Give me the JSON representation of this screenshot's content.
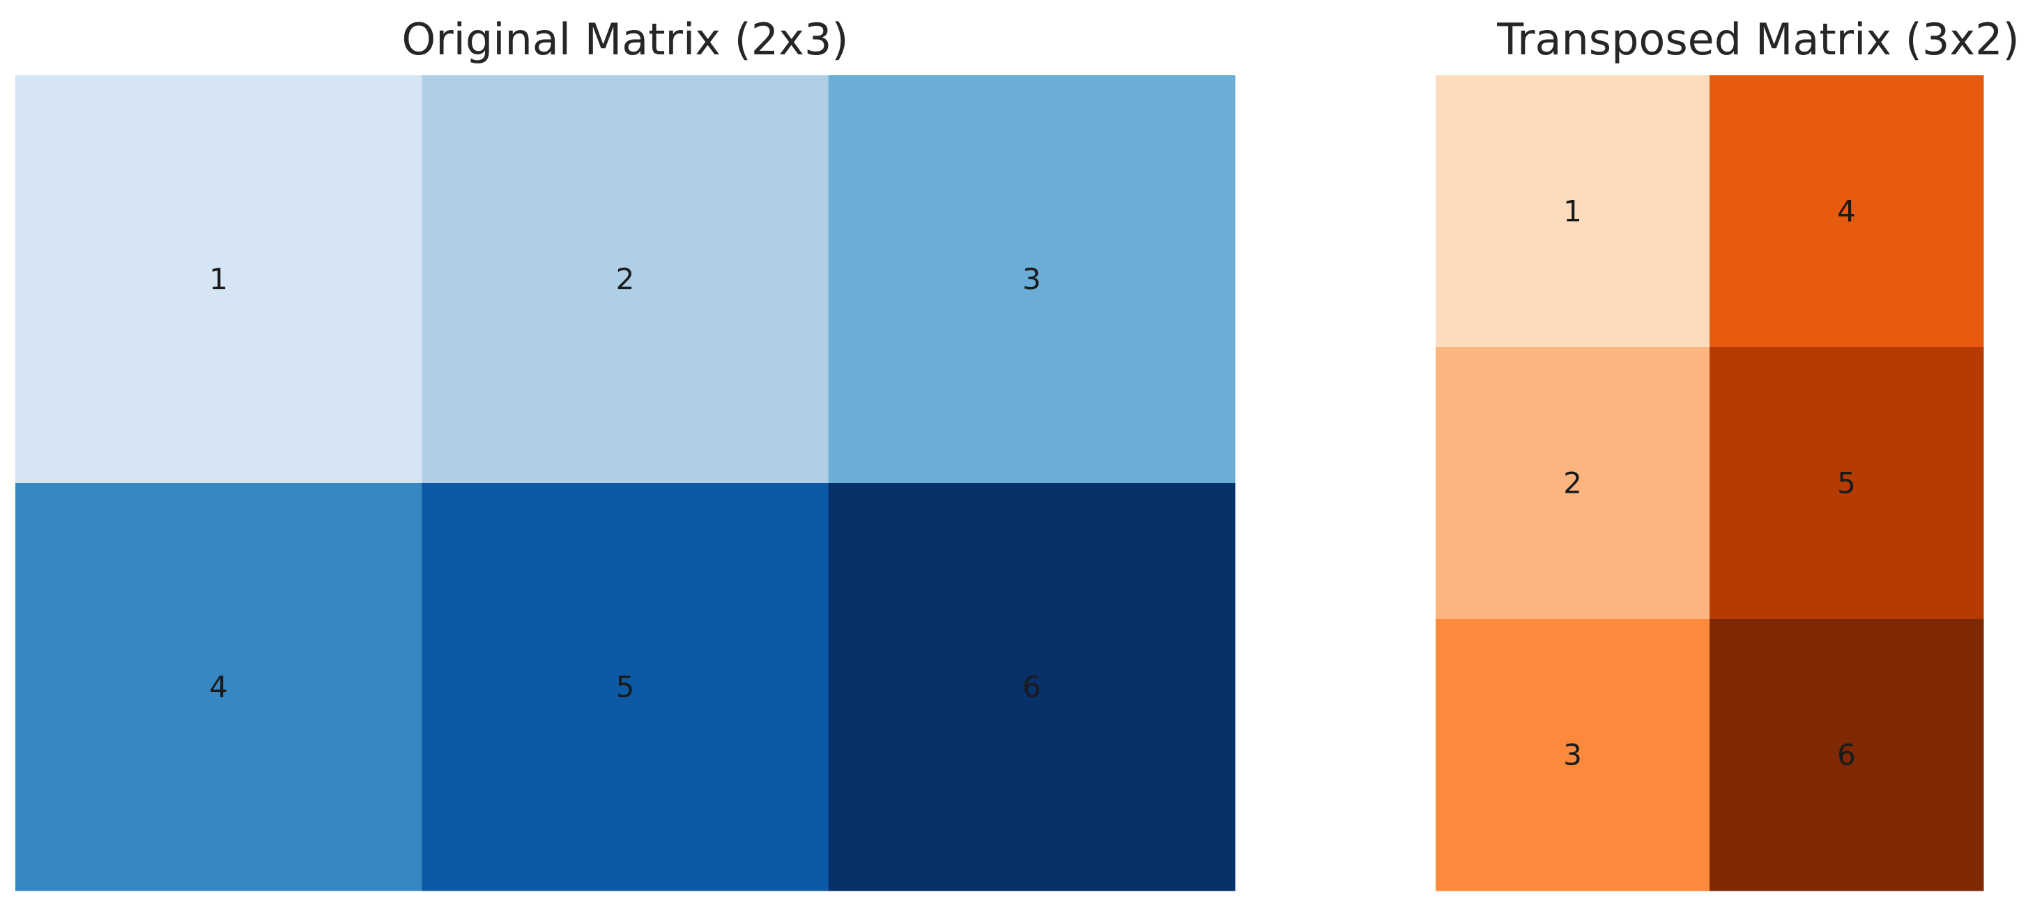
{
  "chart_data": [
    {
      "type": "heatmap",
      "title": "Original Matrix (2x3)",
      "rows": 2,
      "cols": 3,
      "values": [
        [
          1,
          2,
          3
        ],
        [
          4,
          5,
          6
        ]
      ],
      "colormap": "Blues",
      "colors": [
        [
          "#d6e5f4",
          "#aecfe6",
          "#6aadd6"
        ],
        [
          "#3987c2",
          "#0e59a5",
          "#083069"
        ]
      ],
      "annotations": true,
      "axes_visible": false
    },
    {
      "type": "heatmap",
      "title": "Transposed Matrix (3x2)",
      "rows": 3,
      "cols": 2,
      "values": [
        [
          1,
          4
        ],
        [
          2,
          5
        ],
        [
          3,
          6
        ]
      ],
      "colormap": "Oranges",
      "colors": [
        [
          "#fddcbe",
          "#e75b0e"
        ],
        [
          "#fdb57f",
          "#b53b03"
        ],
        [
          "#fb8a3c",
          "#7f2804"
        ]
      ],
      "annotations": true,
      "axes_visible": false
    }
  ]
}
